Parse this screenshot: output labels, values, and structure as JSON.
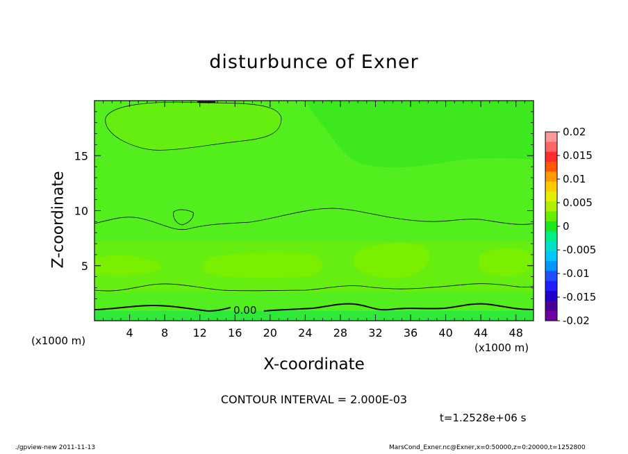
{
  "chart_data": {
    "type": "heatmap",
    "title": "disturbunce of Exner",
    "xlabel": "X-coordinate",
    "ylabel": "Z-coordinate",
    "x_unit_left": "(x1000 m)",
    "x_unit_right": "(x1000 m)",
    "xlim": [
      0,
      50
    ],
    "ylim": [
      0,
      20
    ],
    "x_ticks": [
      "4",
      "8",
      "12",
      "16",
      "20",
      "24",
      "28",
      "32",
      "36",
      "40",
      "44",
      "48"
    ],
    "x_tick_values": [
      4,
      8,
      12,
      16,
      20,
      24,
      28,
      32,
      36,
      40,
      44,
      48
    ],
    "y_ticks": [
      "5",
      "10",
      "15"
    ],
    "y_tick_values": [
      5,
      10,
      15
    ],
    "contour_label": "0.00",
    "contour_interval_text": "CONTOUR INTERVAL = 2.000E-03",
    "time_text": "t=1.2528e+06 s",
    "colorbar": {
      "tick_labels": [
        "0.02",
        "0.015",
        "0.01",
        "0.005",
        "0",
        "-0.005",
        "-0.01",
        "-0.015",
        "-0.02"
      ],
      "tick_values": [
        0.02,
        0.015,
        0.01,
        0.005,
        0,
        -0.005,
        -0.01,
        -0.015,
        -0.02
      ],
      "colors_top_to_bottom": [
        "#ff9999",
        "#ff6666",
        "#ff2d2d",
        "#ff5a00",
        "#ff9a00",
        "#ffcc00",
        "#e6ee00",
        "#aef000",
        "#66ee00",
        "#1ee61e",
        "#00ee88",
        "#00e0c8",
        "#00c8ff",
        "#0096ff",
        "#1e50ff",
        "#1e1eff",
        "#1e00c8",
        "#4b0096",
        "#7000a0"
      ]
    },
    "field_colors": {
      "base": "#52ee1e",
      "bright": "#78f000",
      "pale": "#66ee10",
      "dark": "#3ee81e",
      "ground": "#2ee83a"
    }
  },
  "footer": {
    "left": "./gpview-new   2011-11-13",
    "right": "MarsCond_Exner.nc@Exner,x=0:50000,z=0:20000,t=1252800"
  }
}
